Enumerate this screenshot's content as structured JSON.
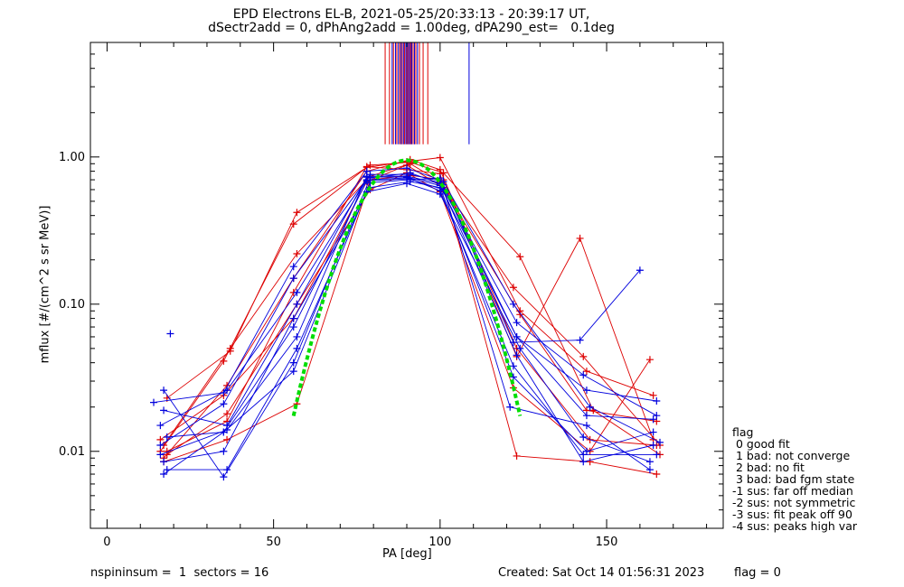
{
  "title_line1": "EPD Electrons EL-B, 2021-05-25/20:33:13 - 20:39:17 UT,",
  "title_line2": "dSectr2add = 0, dPhAng2add = 1.00deg, dPA290_est=   0.1deg",
  "footer": {
    "spins": "nspininsum =  1  sectors = 16",
    "created": "Created: Sat Oct 14 01:56:31 2023",
    "flag": "flag = 0"
  },
  "legend": {
    "title": "flag",
    "items": [
      " 0 good fit",
      " 1 bad: not converge",
      " 2 bad: no fit",
      " 3 bad: bad fgm state",
      "-1 sus: far off median",
      "-2 sus: not symmetric",
      "-3 sus: fit peak off 90",
      "-4 sus: peaks high var"
    ]
  },
  "colors": {
    "red": "#dd0000",
    "blue": "#0000dd",
    "green": "#00dd00"
  },
  "chart_data": {
    "type": "line",
    "xlabel": "PA [deg]",
    "ylabel": "mflux [#/(cm^2 s sr MeV)]",
    "xlim": [
      -5,
      185
    ],
    "ylim": [
      0.003,
      6
    ],
    "yscale": "log",
    "xticks": [
      0,
      50,
      100,
      150
    ],
    "xtick_labels": [
      "0",
      "50",
      "100",
      "150"
    ],
    "yticks": [
      0.01,
      0.1,
      1.0
    ],
    "ytick_labels": [
      "0.01",
      "0.10",
      "1.00"
    ],
    "vertical_markers": {
      "red_x": [
        83.5,
        84.8,
        86.0,
        87.0,
        87.9,
        88.6,
        89.3,
        90.0,
        90.6,
        91.2,
        91.9,
        92.7,
        93.8,
        94.9,
        96.3
      ],
      "blue_x": [
        85.6,
        86.6,
        87.5,
        88.3,
        89.0,
        89.7,
        90.3,
        90.9,
        91.5,
        92.3,
        93.2,
        108.7
      ],
      "y_range": [
        1.22,
        6
      ]
    },
    "series": [
      {
        "color": "red",
        "x": [
          17,
          36,
          56,
          78,
          91,
          100,
          123,
          145,
          165
        ],
        "y": [
          0.009,
          0.028,
          0.15,
          0.8,
          0.96,
          0.82,
          0.05,
          0.012,
          0.011
        ]
      },
      {
        "color": "red",
        "x": [
          18,
          37,
          57,
          79,
          91,
          101,
          124,
          146,
          166
        ],
        "y": [
          0.023,
          0.048,
          0.42,
          0.88,
          0.92,
          0.78,
          0.21,
          0.019,
          0.0095
        ]
      },
      {
        "color": "red",
        "x": [
          16,
          35,
          56,
          78,
          90,
          100,
          124,
          144,
          164
        ],
        "y": [
          0.01,
          0.041,
          0.35,
          0.85,
          0.93,
          0.99,
          0.09,
          0.035,
          0.024
        ]
      },
      {
        "color": "red",
        "x": [
          17,
          36,
          57,
          79,
          91,
          101,
          123,
          142,
          164
        ],
        "y": [
          0.0085,
          0.012,
          0.021,
          0.7,
          0.75,
          0.7,
          0.044,
          0.28,
          0.012
        ]
      },
      {
        "color": "red",
        "x": [
          18,
          36,
          56,
          78,
          90,
          100,
          123,
          145,
          165
        ],
        "y": [
          0.01,
          0.016,
          0.12,
          0.86,
          0.82,
          0.77,
          0.0093,
          0.0085,
          0.007
        ]
      },
      {
        "color": "red",
        "x": [
          17,
          37,
          57,
          79,
          91,
          100,
          122,
          143,
          166
        ],
        "y": [
          0.011,
          0.05,
          0.22,
          0.74,
          0.9,
          0.68,
          0.13,
          0.044,
          0.011
        ]
      },
      {
        "color": "red",
        "x": [
          16,
          35,
          56,
          78,
          90,
          101,
          124,
          144,
          165
        ],
        "y": [
          0.012,
          0.024,
          0.08,
          0.68,
          0.88,
          0.62,
          0.085,
          0.019,
          0.016
        ]
      },
      {
        "color": "red",
        "x": [
          18,
          36,
          57,
          79,
          90,
          100,
          122,
          145,
          163
        ],
        "y": [
          0.0095,
          0.018,
          0.1,
          0.6,
          0.78,
          0.58,
          0.027,
          0.01,
          0.042
        ]
      },
      {
        "color": "blue",
        "x": [
          14,
          35,
          56,
          78,
          90,
          100,
          123,
          144,
          165
        ],
        "y": [
          0.0215,
          0.025,
          0.18,
          0.8,
          0.84,
          0.7,
          0.06,
          0.026,
          0.022
        ]
      },
      {
        "color": "blue",
        "x": [
          17,
          35,
          56,
          79,
          91,
          101,
          122,
          142,
          160
        ],
        "y": [
          0.026,
          0.0067,
          0.04,
          0.72,
          0.78,
          0.65,
          0.055,
          0.057,
          0.17
        ]
      },
      {
        "color": "blue",
        "x": [
          16,
          36,
          57,
          78,
          90,
          100,
          123,
          143,
          164
        ],
        "y": [
          0.0095,
          0.014,
          0.06,
          0.74,
          0.74,
          0.66,
          0.045,
          0.0085,
          0.011
        ]
      },
      {
        "color": "blue",
        "x": [
          17,
          35,
          56,
          79,
          91,
          100,
          121,
          144,
          163
        ],
        "y": [
          0.007,
          0.0135,
          0.035,
          0.67,
          0.7,
          0.72,
          0.02,
          0.015,
          0.0075
        ]
      },
      {
        "color": "blue",
        "x": [
          16,
          36,
          57,
          78,
          90,
          101,
          123,
          143,
          165
        ],
        "y": [
          0.015,
          0.026,
          0.12,
          0.7,
          0.72,
          0.6,
          0.075,
          0.033,
          0.0175
        ]
      },
      {
        "color": "blue",
        "x": [
          17,
          35,
          56,
          79,
          91,
          100,
          122,
          144,
          164
        ],
        "y": [
          0.0085,
          0.01,
          0.08,
          0.62,
          0.68,
          0.62,
          0.032,
          0.01,
          0.0135
        ]
      },
      {
        "color": "blue",
        "x": [
          18,
          36,
          57,
          78,
          90,
          100,
          124,
          143,
          163
        ],
        "y": [
          0.0075,
          0.0075,
          0.05,
          0.58,
          0.66,
          0.56,
          0.05,
          0.0125,
          0.0085
        ]
      },
      {
        "color": "blue",
        "x": [
          16,
          35,
          56,
          79,
          91,
          101,
          122,
          145,
          166
        ],
        "y": [
          0.011,
          0.021,
          0.15,
          0.76,
          0.76,
          0.68,
          0.1,
          0.02,
          0.0115
        ]
      },
      {
        "color": "blue",
        "x": [
          17,
          36,
          57,
          78,
          90,
          100,
          123,
          144,
          164
        ],
        "y": [
          0.019,
          0.015,
          0.1,
          0.73,
          0.73,
          0.64,
          0.06,
          0.0175,
          0.0165
        ]
      },
      {
        "color": "blue",
        "x": [
          18,
          35,
          56,
          78,
          91,
          100,
          122,
          143,
          165
        ],
        "y": [
          0.0125,
          0.0135,
          0.07,
          0.69,
          0.71,
          0.59,
          0.038,
          0.0095,
          0.0095
        ]
      }
    ],
    "lone_points": [
      {
        "color": "blue",
        "x": 19,
        "y": 0.063
      }
    ],
    "fit_curve": {
      "color": "green",
      "x0": 90,
      "peak": 0.95,
      "width": 17,
      "xrange": [
        56,
        124
      ]
    }
  }
}
